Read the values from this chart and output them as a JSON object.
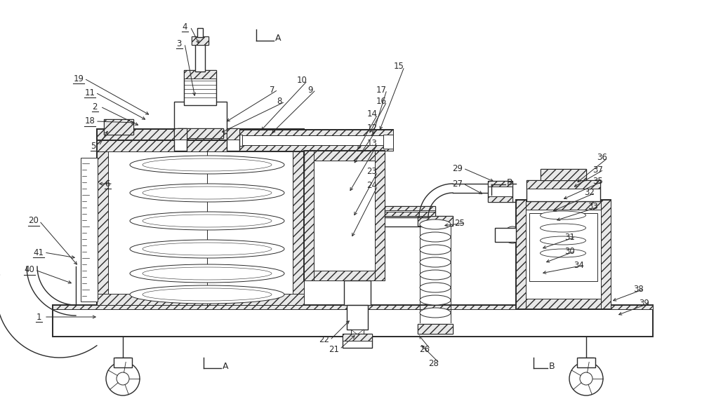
{
  "bg_color": "#ffffff",
  "line_color": "#2a2a2a",
  "figsize": [
    10.0,
    5.79
  ],
  "dpi": 100,
  "underline_labels": [
    "1",
    "2",
    "3",
    "4",
    "5",
    "6",
    "11",
    "18",
    "19",
    "20",
    "40",
    "41"
  ]
}
